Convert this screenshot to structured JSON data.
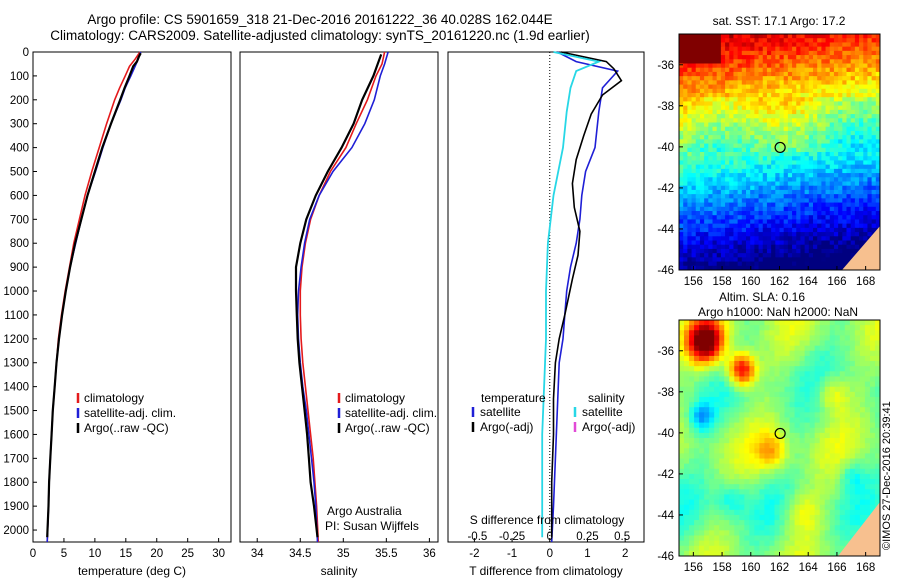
{
  "header": {
    "line1": "Argo profile: CS 5901659_318 21-Dec-2016 20161222_36 40.028S 162.044E",
    "line2": "Climatology: CARS2009. Satellite-adjusted climatology: synTS_20161220.nc (1.9d earlier)"
  },
  "colors": {
    "climatology": "#e41a1c",
    "satellite": "#1f1fd6",
    "argo": "#000000",
    "satellite_salinity": "#27d7e6",
    "argo_salinity_adj": "#e14ad6"
  },
  "credit": {
    "side": "©IMOS 27-Dec-2016 20:39:41",
    "argo_line1": "Argo Australia",
    "argo_line2": "PI: Susan Wijffels"
  },
  "chart_data": [
    {
      "type": "line",
      "xlabel": "temperature (deg C)",
      "xlim": [
        0,
        32
      ],
      "x_ticks": [
        0,
        5,
        10,
        15,
        20,
        25,
        30
      ],
      "ylim": [
        2050,
        0
      ],
      "y_ticks": [
        0,
        100,
        200,
        300,
        400,
        500,
        600,
        700,
        800,
        900,
        1000,
        1100,
        1200,
        1300,
        1400,
        1500,
        1600,
        1700,
        1800,
        1900,
        2000
      ],
      "legend": [
        "climatology",
        "satellite-adj. clim.",
        "Argo(..raw -QC)"
      ],
      "series": [
        {
          "name": "climatology",
          "y": [
            0,
            30,
            60,
            100,
            150,
            200,
            300,
            400,
            500,
            600,
            700,
            800,
            900,
            1000,
            1100,
            1200,
            1300,
            1400,
            1500,
            1600,
            1700,
            1800,
            1900,
            2050
          ],
          "x": [
            17.3,
            16.5,
            15.6,
            14.9,
            14.0,
            13.2,
            11.9,
            10.7,
            9.5,
            8.4,
            7.5,
            6.6,
            5.9,
            5.2,
            4.6,
            4.1,
            3.8,
            3.5,
            3.2,
            3.0,
            2.8,
            2.6,
            2.5,
            2.3
          ]
        },
        {
          "name": "satellite-adj. clim.",
          "y": [
            0,
            30,
            60,
            100,
            150,
            200,
            300,
            400,
            500,
            600,
            700,
            800,
            900,
            1000,
            1100,
            1200,
            1300,
            1400,
            1500,
            1600,
            1700,
            1800,
            1900,
            2050
          ],
          "x": [
            17.4,
            17.0,
            16.5,
            15.8,
            14.9,
            14.2,
            12.6,
            11.3,
            10.1,
            8.8,
            7.8,
            6.9,
            6.0,
            5.3,
            4.7,
            4.2,
            3.8,
            3.5,
            3.2,
            3.0,
            2.8,
            2.6,
            2.5,
            2.3
          ]
        },
        {
          "name": "Argo(..raw -QC)",
          "y": [
            5,
            20,
            40,
            60,
            100,
            150,
            200,
            300,
            400,
            500,
            600,
            700,
            800,
            900,
            1000,
            1100,
            1200,
            1300,
            1400,
            1500,
            1600,
            1700,
            1800,
            1900,
            2030
          ],
          "x": [
            17.4,
            17.1,
            16.8,
            16.2,
            15.6,
            14.8,
            14.1,
            12.6,
            11.2,
            10.0,
            8.8,
            7.8,
            6.8,
            6.0,
            5.3,
            4.7,
            4.2,
            3.8,
            3.5,
            3.2,
            3.0,
            2.8,
            2.6,
            2.5,
            2.3
          ]
        }
      ]
    },
    {
      "type": "line",
      "xlabel": "salinity",
      "xlim": [
        33.8,
        36.1
      ],
      "x_ticks": [
        34,
        34.5,
        35,
        35.5,
        36
      ],
      "ylim": [
        2050,
        0
      ],
      "legend": [
        "climatology",
        "satellite-adj. clim.",
        "Argo(..raw -QC)"
      ],
      "series": [
        {
          "name": "climatology",
          "y": [
            0,
            50,
            100,
            200,
            300,
            400,
            500,
            600,
            700,
            800,
            900,
            1000,
            1100,
            1200,
            1300,
            1400,
            1500,
            1600,
            1700,
            1800,
            1900,
            2050
          ],
          "x": [
            35.48,
            35.45,
            35.38,
            35.28,
            35.15,
            35.03,
            34.85,
            34.72,
            34.62,
            34.56,
            34.52,
            34.5,
            34.5,
            34.51,
            34.53,
            34.56,
            34.59,
            34.62,
            34.65,
            34.67,
            34.69,
            34.71
          ]
        },
        {
          "name": "satellite-adj. clim.",
          "y": [
            0,
            50,
            100,
            200,
            300,
            400,
            500,
            600,
            700,
            800,
            900,
            1000,
            1100,
            1200,
            1300,
            1400,
            1500,
            1600,
            1700,
            1800,
            1900,
            2050
          ],
          "x": [
            35.52,
            35.48,
            35.43,
            35.36,
            35.25,
            35.1,
            34.88,
            34.72,
            34.61,
            34.55,
            34.51,
            34.48,
            34.47,
            34.48,
            34.5,
            34.53,
            34.57,
            34.6,
            34.63,
            34.66,
            34.68,
            34.7
          ]
        },
        {
          "name": "Argo(..raw -QC)",
          "y": [
            10,
            50,
            100,
            200,
            300,
            400,
            500,
            600,
            700,
            800,
            900,
            1000,
            1100,
            1200,
            1300,
            1400,
            1500,
            1600,
            1700,
            1800,
            1900,
            2030
          ],
          "x": [
            35.44,
            35.4,
            35.35,
            35.22,
            35.12,
            34.98,
            34.82,
            34.68,
            34.57,
            34.5,
            34.45,
            34.45,
            34.46,
            34.47,
            34.49,
            34.52,
            34.55,
            34.58,
            34.6,
            34.62,
            34.66,
            34.7
          ]
        }
      ]
    },
    {
      "type": "line",
      "xlabel": "T difference from climatology",
      "x2label": "S difference from climatology",
      "xlim": [
        -2.7,
        2.5
      ],
      "x_ticks": [
        -2,
        -1,
        0,
        1,
        2
      ],
      "x2_ticks": [
        "-0.5",
        "-0.25",
        "0",
        "0.25",
        "0.5"
      ],
      "ylim": [
        2050,
        0
      ],
      "legend_titles": [
        "temperature",
        "salinity"
      ],
      "legend": [
        "satellite",
        "Argo(-adj)",
        "satellite",
        "Argo(-adj)"
      ],
      "series": [
        {
          "name": "satellite",
          "y": [
            0,
            40,
            80,
            150,
            250,
            400,
            500,
            600,
            700,
            800,
            900,
            1000,
            1100,
            1200,
            1300,
            1500,
            1700,
            1900,
            2050
          ],
          "x": [
            0.2,
            0.7,
            1.8,
            1.4,
            1.3,
            1.2,
            0.95,
            0.85,
            0.8,
            0.7,
            0.55,
            0.45,
            0.4,
            0.35,
            0.25,
            0.2,
            0.15,
            0.1,
            0.05
          ]
        },
        {
          "name": "Argo(-adj)",
          "y": [
            0,
            40,
            70,
            120,
            180,
            260,
            350,
            450,
            550,
            650,
            750,
            850,
            950,
            1100,
            1200,
            1300,
            1450,
            1600,
            1800,
            2030
          ],
          "x": [
            0.3,
            1.5,
            1.7,
            1.9,
            1.4,
            1.1,
            0.9,
            0.7,
            0.6,
            0.65,
            0.8,
            0.75,
            0.6,
            0.4,
            0.25,
            0.15,
            0.1,
            0.1,
            0.05,
            0.05
          ]
        }
      ]
    },
    {
      "type": "heatmap",
      "title": "sat. SST: 17.1  Argo: 17.2",
      "x_ticks": [
        156,
        158,
        160,
        162,
        164,
        166,
        168
      ],
      "y_ticks": [
        -36,
        -38,
        -40,
        -42,
        -44,
        -46
      ],
      "xlim": [
        155,
        169
      ],
      "ylim": [
        -46,
        -34.5
      ],
      "marker": {
        "lon": 162.044,
        "lat": -40.028
      }
    },
    {
      "type": "heatmap",
      "title": "Altim. SLA: 0.16",
      "subtitle": "Argo h1000: NaN h2000: NaN",
      "x_ticks": [
        156,
        158,
        160,
        162,
        164,
        166,
        168
      ],
      "y_ticks": [
        -36,
        -38,
        -40,
        -42,
        -44,
        -46
      ],
      "xlim": [
        155,
        169
      ],
      "ylim": [
        -46,
        -34.5
      ],
      "marker": {
        "lon": 162.044,
        "lat": -40.028
      }
    }
  ]
}
